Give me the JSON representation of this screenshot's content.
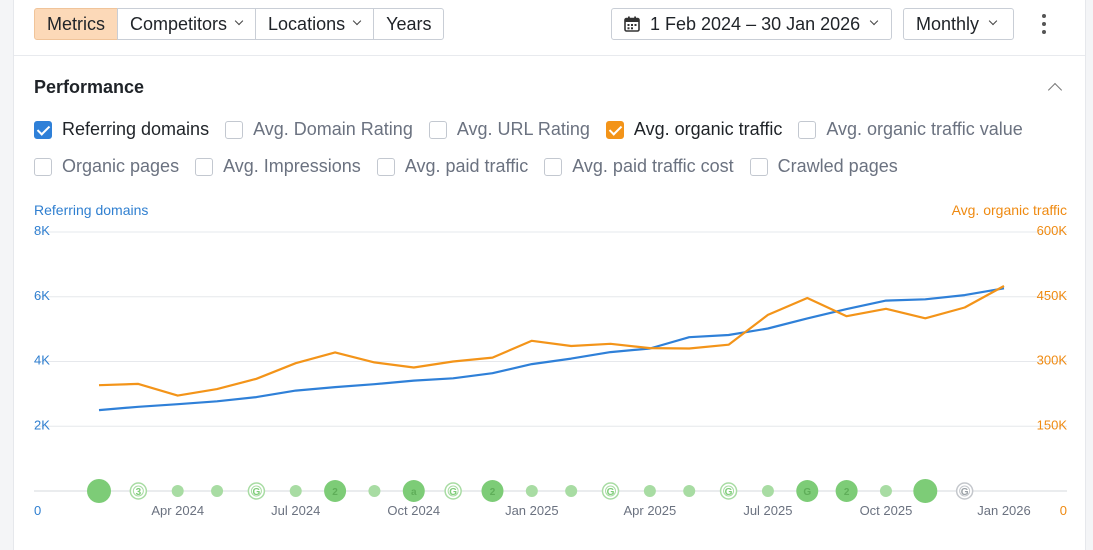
{
  "toolbar": {
    "tabs": [
      {
        "label": "Metrics",
        "active": true,
        "dropdown": false
      },
      {
        "label": "Competitors",
        "active": false,
        "dropdown": true
      },
      {
        "label": "Locations",
        "active": false,
        "dropdown": true
      },
      {
        "label": "Years",
        "active": false,
        "dropdown": false
      }
    ],
    "date_range": "1 Feb 2024 – 30 Jan 2026",
    "period": "Monthly",
    "more_icon": "kebab-vertical-icon",
    "calendar_icon": "calendar-icon"
  },
  "performance": {
    "title": "Performance",
    "collapse_icon": "chevron-up-icon",
    "metrics_row1": [
      {
        "label": "Referring domains",
        "checked": true,
        "color": "#2f80d8"
      },
      {
        "label": "Avg. Domain Rating",
        "checked": false
      },
      {
        "label": "Avg. URL Rating",
        "checked": false
      },
      {
        "label": "Avg. organic traffic",
        "checked": true,
        "color": "#f39419"
      },
      {
        "label": "Avg. organic traffic value",
        "checked": false
      }
    ],
    "metrics_row2": [
      {
        "label": "Organic pages",
        "checked": false
      },
      {
        "label": "Avg. Impressions",
        "checked": false
      },
      {
        "label": "Avg. paid traffic",
        "checked": false
      },
      {
        "label": "Avg. paid traffic cost",
        "checked": false
      },
      {
        "label": "Crawled pages",
        "checked": false
      }
    ]
  },
  "chart_data": {
    "type": "line",
    "left_axis_title": "Referring domains",
    "right_axis_title": "Avg. organic traffic",
    "left_ticks": [
      "0",
      "2K",
      "4K",
      "6K",
      "8K"
    ],
    "right_ticks": [
      "0",
      "150K",
      "300K",
      "450K",
      "600K"
    ],
    "left_ylim": [
      0,
      8000
    ],
    "right_ylim": [
      0,
      600000
    ],
    "x_tick_labels": [
      "Apr 2024",
      "Jul 2024",
      "Oct 2024",
      "Jan 2025",
      "Apr 2025",
      "Jul 2025",
      "Oct 2025",
      "Jan 2026"
    ],
    "x_tick_month_index": [
      2,
      5,
      8,
      11,
      14,
      17,
      20,
      23
    ],
    "months": [
      "Feb 2024",
      "Mar 2024",
      "Apr 2024",
      "May 2024",
      "Jun 2024",
      "Jul 2024",
      "Aug 2024",
      "Sep 2024",
      "Oct 2024",
      "Nov 2024",
      "Dec 2024",
      "Jan 2025",
      "Feb 2025",
      "Mar 2025",
      "Apr 2025",
      "May 2025",
      "Jun 2025",
      "Jul 2025",
      "Aug 2025",
      "Sep 2025",
      "Oct 2025",
      "Nov 2025",
      "Dec 2025",
      "Jan 2026"
    ],
    "series": [
      {
        "name": "Referring domains",
        "axis": "left",
        "color": "#2f80d8",
        "values": [
          2500,
          2600,
          2680,
          2770,
          2900,
          3100,
          3210,
          3300,
          3410,
          3480,
          3640,
          3920,
          4090,
          4290,
          4400,
          4750,
          4820,
          5020,
          5330,
          5620,
          5880,
          5920,
          6050,
          6260
        ]
      },
      {
        "name": "Avg. organic traffic",
        "axis": "right",
        "color": "#f39419",
        "values": [
          245000,
          248000,
          221000,
          236000,
          260000,
          296000,
          321000,
          298000,
          286000,
          300000,
          309000,
          348000,
          336000,
          341000,
          331000,
          330000,
          339000,
          408000,
          447000,
          405000,
          422000,
          400000,
          425000,
          475000
        ]
      }
    ],
    "annotations": [
      {
        "month": 0,
        "kind": "big",
        "label": ""
      },
      {
        "month": 1,
        "kind": "outline",
        "label": "3"
      },
      {
        "month": 2,
        "kind": "small",
        "label": ""
      },
      {
        "month": 3,
        "kind": "small",
        "label": ""
      },
      {
        "month": 4,
        "kind": "outline",
        "label": "G"
      },
      {
        "month": 5,
        "kind": "small",
        "label": ""
      },
      {
        "month": 6,
        "kind": "medium",
        "label": "2"
      },
      {
        "month": 7,
        "kind": "small",
        "label": ""
      },
      {
        "month": 8,
        "kind": "medium",
        "label": "a"
      },
      {
        "month": 9,
        "kind": "outline",
        "label": "G"
      },
      {
        "month": 10,
        "kind": "medium",
        "label": "2"
      },
      {
        "month": 11,
        "kind": "small",
        "label": ""
      },
      {
        "month": 12,
        "kind": "small",
        "label": ""
      },
      {
        "month": 13,
        "kind": "outline",
        "label": "G"
      },
      {
        "month": 14,
        "kind": "small",
        "label": ""
      },
      {
        "month": 15,
        "kind": "small",
        "label": ""
      },
      {
        "month": 16,
        "kind": "outline",
        "label": "G"
      },
      {
        "month": 17,
        "kind": "small",
        "label": ""
      },
      {
        "month": 18,
        "kind": "medium",
        "label": "G"
      },
      {
        "month": 19,
        "kind": "medium",
        "label": "2"
      },
      {
        "month": 20,
        "kind": "small",
        "label": ""
      },
      {
        "month": 21,
        "kind": "big",
        "label": ""
      },
      {
        "month": 22,
        "kind": "outline-gray",
        "label": "G"
      }
    ],
    "grid": true,
    "legend": "none"
  }
}
